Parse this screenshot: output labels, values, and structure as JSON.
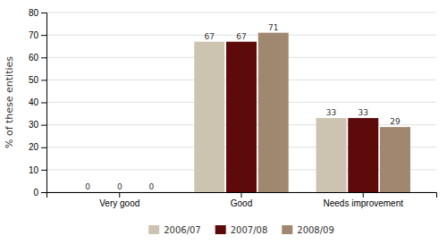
{
  "chart_data": {
    "type": "bar",
    "categories": [
      "Very good",
      "Good",
      "Needs improvement"
    ],
    "series": [
      {
        "name": "2006/07",
        "color": "#ccc4b0",
        "values": [
          0,
          67,
          33
        ]
      },
      {
        "name": "2007/08",
        "color": "#5c0a0a",
        "values": [
          0,
          67,
          33
        ]
      },
      {
        "name": "2008/09",
        "color": "#a08870",
        "values": [
          0,
          71,
          29
        ]
      }
    ],
    "ylabel": "% of these entities",
    "ylim": [
      0,
      80
    ],
    "yticks": [
      0,
      10,
      20,
      30,
      40,
      50,
      60,
      70,
      80
    ],
    "grid": true,
    "data_labels": true,
    "legend": "bottom"
  }
}
